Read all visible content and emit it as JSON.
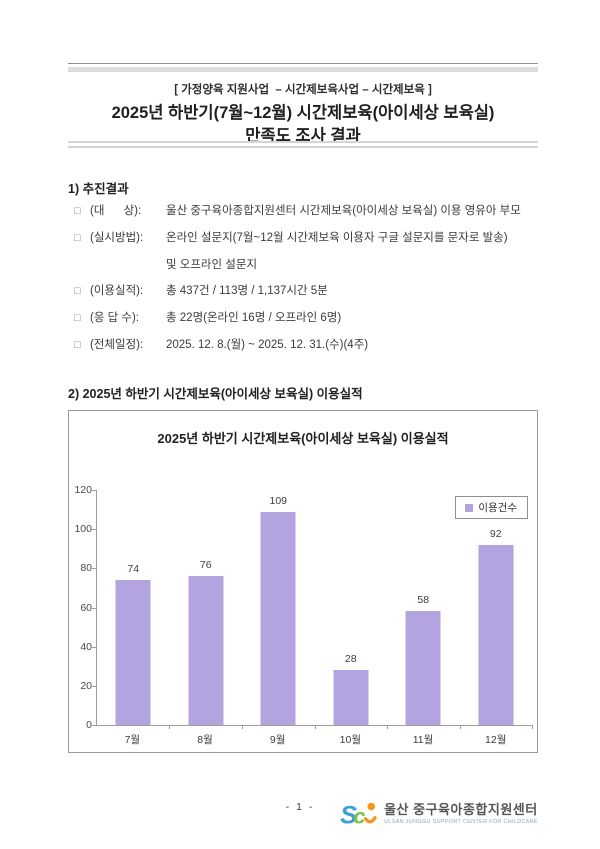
{
  "page": {
    "header": {
      "category_line": "[ 가정양육 지원사업  – 시간제보육사업 – 시간제보육 ]",
      "title_line1": "2025년 하반기(7월~12월) 시간제보육(아이세상 보육실)",
      "title_line2": "만족도 조사 결과"
    },
    "section1": {
      "heading": "1) 추진결과",
      "items": [
        {
          "bullet": "□",
          "label": "(대      상):",
          "text": "울산 중구육아종합지원센터 시간제보육(아이세상 보육실) 이용 영유아 부모"
        },
        {
          "bullet": "□",
          "label": "(실시방법):",
          "text": "온라인 설문지(7월~12월 시간제보육 이용자 구글 설문지를 문자로 발송)"
        },
        {
          "bullet": "",
          "label": "",
          "text": "및 오프라인 설문지"
        },
        {
          "bullet": "□",
          "label": "(이용실적):",
          "text": "총 437건 / 113명 / 1,137시간 5분"
        },
        {
          "bullet": "□",
          "label": "(응 답 수):",
          "text": "총 22명(온라인 16명 / 오프라인 6명)"
        },
        {
          "bullet": "□",
          "label": "(전체일정):",
          "text": "2025. 12. 8.(월) ~ 2025. 12. 31.(수)(4주)"
        }
      ]
    },
    "section2": {
      "heading": "2) 2025년 하반기 시간제보육(아이세상 보육실) 이용실적"
    },
    "footer": {
      "page_number": "- 1 -",
      "logo_text": "울산 중구육아종합지원센터",
      "logo_subtext": "ULSAN JUNGGU SUPPORT CENTER FOR CHILDCARE"
    }
  },
  "chart_data": {
    "type": "bar",
    "title": "2025년 하반기 시간제보육(아이세상 보육실) 이용실적",
    "categories": [
      "7월",
      "8월",
      "9월",
      "10월",
      "11월",
      "12월"
    ],
    "series": [
      {
        "name": "이용건수",
        "values": [
          74,
          76,
          109,
          28,
          58,
          92
        ]
      }
    ],
    "xlabel": "",
    "ylabel": "",
    "ylim": [
      0,
      120
    ],
    "yticks": [
      0,
      20,
      40,
      60,
      80,
      100,
      120
    ],
    "grid": false,
    "legend_position": "top-right",
    "bar_color": "#b3a3de"
  }
}
